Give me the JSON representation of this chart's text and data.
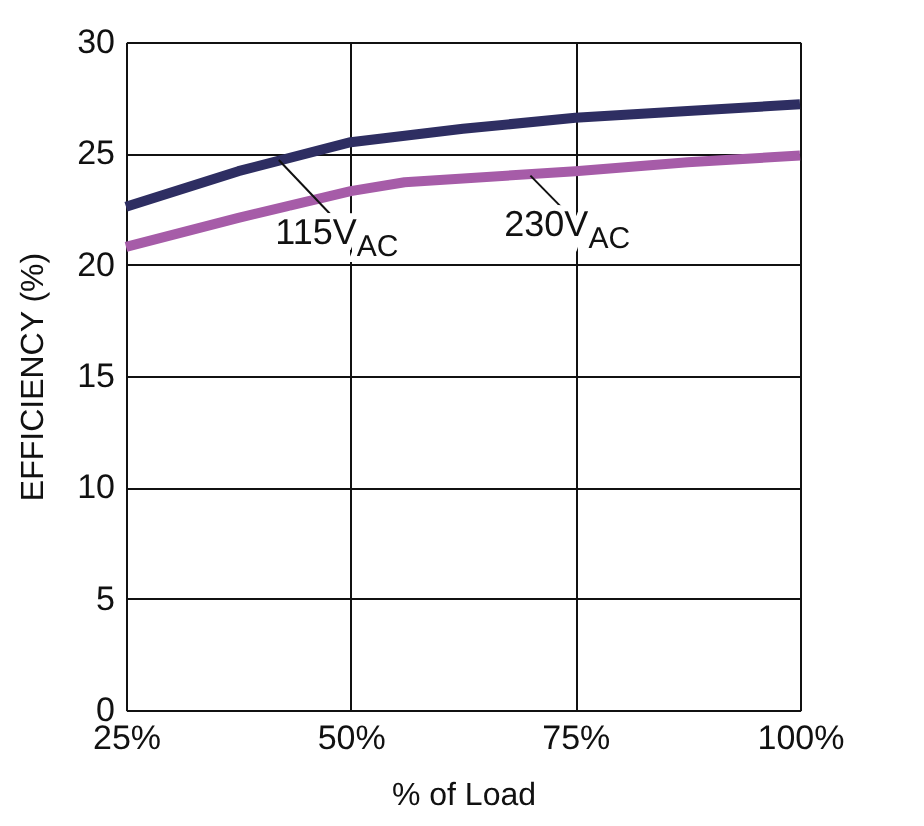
{
  "chart_data": {
    "type": "line",
    "xlabel": "% of Load",
    "ylabel": "EFFICIENCY (%)",
    "x": [
      25,
      37.5,
      50,
      62.5,
      75,
      87.5,
      100
    ],
    "series": [
      {
        "color": "#2e2e62",
        "values": [
          22.6,
          24.2,
          25.5,
          26.1,
          26.6,
          26.9,
          27.2
        ]
      },
      {
        "color": "#a65ca8",
        "x": [
          25,
          37.5,
          50,
          56,
          75,
          87.5,
          100
        ],
        "values": [
          20.8,
          22.1,
          23.3,
          23.7,
          24.2,
          24.6,
          24.9
        ]
      }
    ],
    "annotations": [
      {
        "text": "115V$_{AC}$",
        "x": 42,
        "y": 24.7
      },
      {
        "text": "230V$_{AC}$",
        "x": 70,
        "y": 24.0
      }
    ],
    "xlim": [
      25,
      100
    ],
    "ylim": [
      0,
      30
    ],
    "xticks": [
      {
        "value": 25,
        "label": "25%"
      },
      {
        "value": 50,
        "label": "50%"
      },
      {
        "value": 75,
        "label": "75%"
      },
      {
        "value": 100,
        "label": "100%"
      }
    ],
    "yticks": [
      0,
      5,
      10,
      15,
      20,
      25,
      30
    ],
    "grid": true,
    "marker": "none",
    "line_style": "solid"
  }
}
